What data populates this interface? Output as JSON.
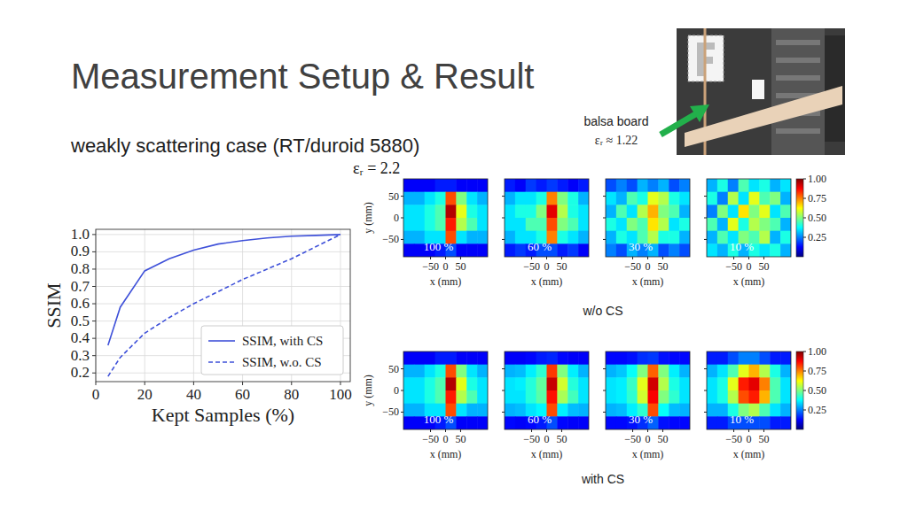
{
  "slide": {
    "title": "Measurement Setup & Result",
    "subtitle": "weakly scattering case (RT/duroid 5880)",
    "permittivity_label": "εᵣ = 2.2",
    "photo_label": "balsa board",
    "photo_permittivity": "εᵣ ≈ 1.22",
    "row_labels": [
      "w/o CS",
      "with CS"
    ]
  },
  "chart_data": [
    {
      "type": "line",
      "xlabel": "Kept Samples (%)",
      "ylabel": "SSIM",
      "x": [
        5,
        10,
        20,
        30,
        40,
        50,
        60,
        70,
        80,
        90,
        100
      ],
      "series": [
        {
          "name": "SSIM, with CS",
          "color": "#3f51d9",
          "line_style": "solid",
          "values": [
            0.36,
            0.58,
            0.79,
            0.86,
            0.91,
            0.945,
            0.965,
            0.98,
            0.99,
            0.995,
            1.0
          ]
        },
        {
          "name": "SSIM, w.o. CS",
          "color": "#3f51d9",
          "line_style": "dashed",
          "values": [
            0.18,
            0.29,
            0.43,
            0.52,
            0.6,
            0.67,
            0.74,
            0.8,
            0.86,
            0.93,
            1.0
          ]
        }
      ],
      "xlim": [
        0,
        104
      ],
      "ylim": [
        0.15,
        1.03
      ],
      "xticks": [
        0,
        20,
        40,
        60,
        80,
        100
      ],
      "yticks": [
        0.2,
        0.3,
        0.4,
        0.5,
        0.6,
        0.7,
        0.8,
        0.9,
        {
          "value": 1,
          "label": "1.0"
        }
      ],
      "grid": true,
      "legend": "lower right"
    },
    {
      "type": "heatmap",
      "label": "100 %",
      "xlabel": "x (mm)",
      "ylabel": "y (mm)",
      "xlim": [
        -140,
        140
      ],
      "ylim": [
        -90,
        90
      ],
      "xticks": [
        {
          "value": -50,
          "label": "−50"
        },
        0,
        50
      ],
      "yticks": [
        {
          "value": -50,
          "label": "−50"
        },
        0,
        50
      ],
      "cells": [
        [
          0.12,
          0.12,
          0.12,
          0.15,
          0.15,
          0.12,
          0.12,
          0.12
        ],
        [
          0.3,
          0.3,
          0.35,
          0.4,
          0.8,
          0.5,
          0.35,
          0.3
        ],
        [
          0.35,
          0.35,
          0.4,
          0.45,
          0.95,
          0.6,
          0.4,
          0.35
        ],
        [
          0.35,
          0.35,
          0.4,
          0.45,
          0.85,
          0.55,
          0.45,
          0.35
        ],
        [
          0.3,
          0.3,
          0.35,
          0.35,
          0.8,
          0.35,
          0.3,
          0.3
        ],
        [
          0.12,
          0.12,
          0.12,
          0.15,
          0.2,
          0.12,
          0.12,
          0.12
        ]
      ]
    },
    {
      "type": "heatmap",
      "label": "60 %",
      "xlabel": "x (mm)",
      "xlim": [
        -140,
        140
      ],
      "ylim": [
        -90,
        90
      ],
      "tick_labels": "x",
      "xticks": [
        {
          "value": -50,
          "label": "−50"
        },
        0,
        50
      ],
      "yticks": [
        -50,
        0,
        50
      ],
      "cells": [
        [
          0.15,
          0.12,
          0.18,
          0.15,
          0.18,
          0.15,
          0.12,
          0.15
        ],
        [
          0.3,
          0.35,
          0.35,
          0.4,
          0.75,
          0.5,
          0.4,
          0.3
        ],
        [
          0.35,
          0.4,
          0.4,
          0.5,
          0.9,
          0.55,
          0.4,
          0.35
        ],
        [
          0.35,
          0.35,
          0.45,
          0.45,
          0.8,
          0.5,
          0.45,
          0.35
        ],
        [
          0.3,
          0.35,
          0.35,
          0.4,
          0.75,
          0.4,
          0.35,
          0.3
        ],
        [
          0.15,
          0.18,
          0.15,
          0.2,
          0.2,
          0.15,
          0.18,
          0.12
        ]
      ]
    },
    {
      "type": "heatmap",
      "label": "30 %",
      "xlabel": "x (mm)",
      "xlim": [
        -140,
        140
      ],
      "ylim": [
        -90,
        90
      ],
      "tick_labels": "x",
      "xticks": [
        {
          "value": -50,
          "label": "−50"
        },
        0,
        50
      ],
      "yticks": [
        -50,
        0,
        50
      ],
      "cells": [
        [
          0.2,
          0.25,
          0.2,
          0.3,
          0.25,
          0.3,
          0.2,
          0.25
        ],
        [
          0.35,
          0.3,
          0.45,
          0.4,
          0.6,
          0.55,
          0.4,
          0.35
        ],
        [
          0.3,
          0.45,
          0.35,
          0.55,
          0.7,
          0.5,
          0.45,
          0.3
        ],
        [
          0.4,
          0.35,
          0.5,
          0.45,
          0.65,
          0.55,
          0.35,
          0.4
        ],
        [
          0.3,
          0.4,
          0.35,
          0.45,
          0.55,
          0.4,
          0.4,
          0.3
        ],
        [
          0.25,
          0.2,
          0.3,
          0.25,
          0.3,
          0.2,
          0.25,
          0.2
        ]
      ]
    },
    {
      "type": "heatmap",
      "label": "10 %",
      "xlabel": "x (mm)",
      "xlim": [
        -140,
        140
      ],
      "ylim": [
        -90,
        90
      ],
      "tick_labels": "x",
      "xticks": [
        {
          "value": -50,
          "label": "−50"
        },
        0,
        50
      ],
      "yticks": [
        -50,
        0,
        50
      ],
      "cells": [
        [
          0.3,
          0.4,
          0.25,
          0.45,
          0.35,
          0.4,
          0.3,
          0.35
        ],
        [
          0.4,
          0.25,
          0.55,
          0.35,
          0.6,
          0.45,
          0.5,
          0.3
        ],
        [
          0.25,
          0.5,
          0.35,
          0.65,
          0.5,
          0.6,
          0.35,
          0.45
        ],
        [
          0.45,
          0.3,
          0.6,
          0.4,
          0.55,
          0.5,
          0.45,
          0.3
        ],
        [
          0.3,
          0.45,
          0.35,
          0.5,
          0.45,
          0.55,
          0.3,
          0.4
        ],
        [
          0.35,
          0.3,
          0.4,
          0.3,
          0.4,
          0.35,
          0.4,
          0.3
        ]
      ],
      "colorbar": {
        "range": [
          0,
          1
        ],
        "ticks": [
          0.25,
          {
            "value": 0.5,
            "label": "0.50"
          },
          0.75,
          {
            "value": 1,
            "label": "1.00"
          }
        ]
      }
    },
    {
      "type": "heatmap",
      "label": "100 %",
      "xlabel": "x (mm)",
      "ylabel": "y (mm)",
      "xlim": [
        -140,
        140
      ],
      "ylim": [
        -90,
        90
      ],
      "xticks": [
        {
          "value": -50,
          "label": "−50"
        },
        0,
        50
      ],
      "yticks": [
        {
          "value": -50,
          "label": "−50"
        },
        0,
        50
      ],
      "cells": [
        [
          0.12,
          0.12,
          0.12,
          0.15,
          0.15,
          0.12,
          0.12,
          0.12
        ],
        [
          0.3,
          0.3,
          0.35,
          0.4,
          0.8,
          0.5,
          0.35,
          0.3
        ],
        [
          0.35,
          0.35,
          0.4,
          0.45,
          0.95,
          0.6,
          0.4,
          0.35
        ],
        [
          0.35,
          0.35,
          0.4,
          0.45,
          0.85,
          0.55,
          0.45,
          0.35
        ],
        [
          0.3,
          0.3,
          0.35,
          0.35,
          0.8,
          0.35,
          0.3,
          0.3
        ],
        [
          0.12,
          0.12,
          0.12,
          0.15,
          0.2,
          0.12,
          0.12,
          0.12
        ]
      ]
    },
    {
      "type": "heatmap",
      "label": "60 %",
      "xlabel": "x (mm)",
      "xlim": [
        -140,
        140
      ],
      "ylim": [
        -90,
        90
      ],
      "tick_labels": "x",
      "xticks": [
        {
          "value": -50,
          "label": "−50"
        },
        0,
        50
      ],
      "yticks": [
        -50,
        0,
        50
      ],
      "cells": [
        [
          0.12,
          0.12,
          0.13,
          0.15,
          0.16,
          0.13,
          0.12,
          0.12
        ],
        [
          0.3,
          0.31,
          0.36,
          0.42,
          0.82,
          0.5,
          0.36,
          0.3
        ],
        [
          0.35,
          0.36,
          0.41,
          0.47,
          0.93,
          0.58,
          0.41,
          0.35
        ],
        [
          0.35,
          0.35,
          0.41,
          0.46,
          0.86,
          0.54,
          0.44,
          0.35
        ],
        [
          0.3,
          0.31,
          0.35,
          0.37,
          0.8,
          0.36,
          0.31,
          0.3
        ],
        [
          0.13,
          0.12,
          0.13,
          0.15,
          0.2,
          0.13,
          0.12,
          0.12
        ]
      ]
    },
    {
      "type": "heatmap",
      "label": "30 %",
      "xlabel": "x (mm)",
      "xlim": [
        -140,
        140
      ],
      "ylim": [
        -90,
        90
      ],
      "tick_labels": "x",
      "xticks": [
        {
          "value": -50,
          "label": "−50"
        },
        0,
        50
      ],
      "yticks": [
        -50,
        0,
        50
      ],
      "cells": [
        [
          0.13,
          0.13,
          0.14,
          0.17,
          0.18,
          0.14,
          0.13,
          0.13
        ],
        [
          0.3,
          0.32,
          0.38,
          0.5,
          0.78,
          0.5,
          0.36,
          0.3
        ],
        [
          0.35,
          0.36,
          0.43,
          0.6,
          0.92,
          0.55,
          0.4,
          0.35
        ],
        [
          0.35,
          0.36,
          0.42,
          0.58,
          0.88,
          0.5,
          0.42,
          0.35
        ],
        [
          0.3,
          0.31,
          0.36,
          0.42,
          0.8,
          0.38,
          0.31,
          0.3
        ],
        [
          0.13,
          0.13,
          0.14,
          0.17,
          0.22,
          0.14,
          0.13,
          0.13
        ]
      ]
    },
    {
      "type": "heatmap",
      "label": "10 %",
      "xlabel": "x (mm)",
      "xlim": [
        -140,
        140
      ],
      "ylim": [
        -90,
        90
      ],
      "tick_labels": "x",
      "xticks": [
        {
          "value": -50,
          "label": "−50"
        },
        0,
        50
      ],
      "yticks": [
        -50,
        0,
        50
      ],
      "cells": [
        [
          0.15,
          0.15,
          0.2,
          0.25,
          0.25,
          0.2,
          0.15,
          0.15
        ],
        [
          0.3,
          0.35,
          0.45,
          0.6,
          0.7,
          0.55,
          0.4,
          0.3
        ],
        [
          0.35,
          0.4,
          0.6,
          0.85,
          0.9,
          0.75,
          0.45,
          0.35
        ],
        [
          0.35,
          0.4,
          0.55,
          0.8,
          0.85,
          0.7,
          0.45,
          0.35
        ],
        [
          0.3,
          0.3,
          0.4,
          0.5,
          0.55,
          0.45,
          0.35,
          0.3
        ],
        [
          0.15,
          0.15,
          0.2,
          0.2,
          0.2,
          0.2,
          0.15,
          0.15
        ]
      ],
      "colorbar": {
        "range": [
          0,
          1
        ],
        "ticks": [
          0.25,
          {
            "value": 0.5,
            "label": "0.50"
          },
          0.75,
          {
            "value": 1,
            "label": "1.00"
          }
        ]
      }
    }
  ]
}
